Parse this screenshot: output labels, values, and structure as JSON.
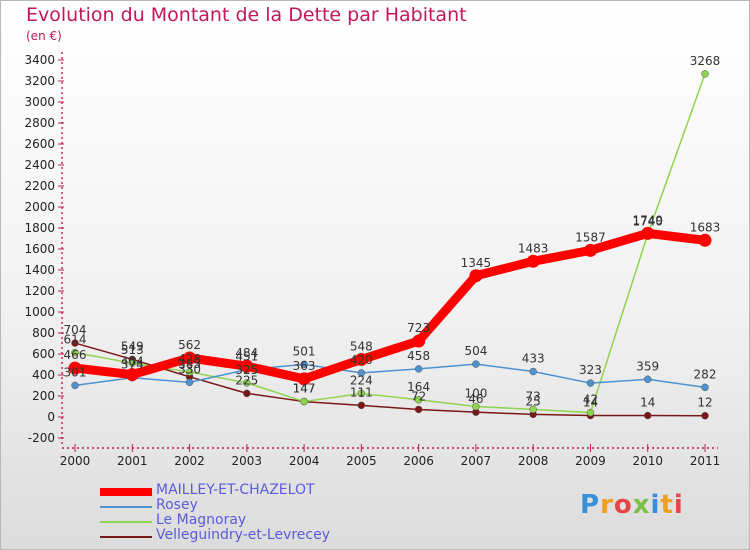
{
  "title": "Evolution du Montant de la Dette par Habitant",
  "unit": "(en €)",
  "logo": "Proxiti",
  "chart_data": {
    "type": "line",
    "x": [
      "2000",
      "2001",
      "2002",
      "2003",
      "2004",
      "2005",
      "2006",
      "2007",
      "2008",
      "2009",
      "2010",
      "2011"
    ],
    "ylim": [
      -200,
      3400
    ],
    "yticks": [
      -200,
      0,
      200,
      400,
      600,
      800,
      1000,
      1200,
      1400,
      1600,
      1800,
      2000,
      2200,
      2400,
      2600,
      2800,
      3000,
      3200,
      3400
    ],
    "grid": false,
    "legend_position": "bottom-left",
    "series": [
      {
        "name": "MAILLEY-ET-CHAZELOT",
        "color": "#ff0000",
        "width": 9,
        "values": [
          466,
          404,
          562,
          484,
          363,
          548,
          723,
          1345,
          1483,
          1587,
          1749,
          1683
        ]
      },
      {
        "name": "Rosey",
        "color": "#4e92cf",
        "width": 1.5,
        "values": [
          301,
          374,
          330,
          451,
          501,
          420,
          458,
          504,
          433,
          323,
          359,
          282
        ]
      },
      {
        "name": "Le Magnoray",
        "color": "#8fd44d",
        "width": 1.5,
        "values": [
          614,
          513,
          428,
          325,
          147,
          224,
          164,
          100,
          73,
          42,
          1740,
          3268
        ]
      },
      {
        "name": "Velleguindry-et-Levrecey",
        "color": "#7a1717",
        "width": 1.5,
        "values": [
          704,
          549,
          383,
          225,
          147,
          111,
          72,
          46,
          25,
          14,
          14,
          12
        ]
      }
    ],
    "labels": [
      {
        "series": 0,
        "text": [
          "466",
          "404",
          "562",
          "484",
          "363",
          "548",
          "723",
          "1345",
          "1483",
          "1587",
          "1749",
          "1683"
        ]
      },
      {
        "series": 1,
        "text": [
          "301",
          "374",
          "330",
          "451",
          "501",
          "420",
          "458",
          "504",
          "433",
          "323",
          "359",
          "282"
        ]
      },
      {
        "series": 2,
        "text": [
          "614",
          "513",
          "428",
          "325",
          "147",
          "224",
          "164",
          "100",
          "73",
          "42",
          "1740",
          "3268"
        ]
      },
      {
        "series": 3,
        "text": [
          "704",
          "549",
          "383",
          "225",
          "147",
          "111",
          "72",
          "46",
          "25",
          "14",
          "14",
          "12"
        ]
      }
    ]
  }
}
